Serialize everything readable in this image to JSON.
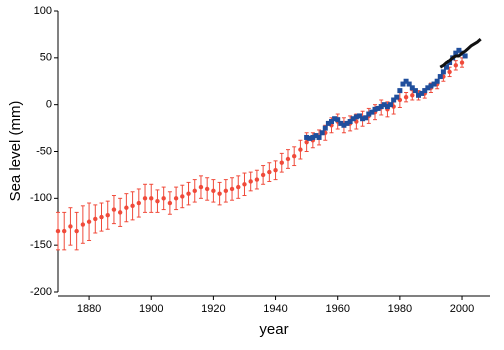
{
  "chart_data": {
    "type": "scatter",
    "x_label": "year",
    "y_label": "Sea level (mm)",
    "xlim": [
      1870,
      2009
    ],
    "ylim": [
      -200,
      100
    ],
    "xticks": [
      1880,
      1900,
      1920,
      1940,
      1960,
      1980,
      2000
    ],
    "yticks": [
      -200,
      -150,
      -100,
      -50,
      0,
      50,
      100
    ],
    "grid": false,
    "series": [
      {
        "color": "#f04a3a",
        "marker": "errorbar",
        "x": [
          1870,
          1872,
          1874,
          1876,
          1878,
          1880,
          1882,
          1884,
          1886,
          1888,
          1890,
          1892,
          1894,
          1896,
          1898,
          1900,
          1902,
          1904,
          1906,
          1908,
          1910,
          1912,
          1914,
          1916,
          1918,
          1920,
          1922,
          1924,
          1926,
          1928,
          1930,
          1932,
          1934,
          1936,
          1938,
          1940,
          1942,
          1944,
          1946,
          1948,
          1950,
          1952,
          1954,
          1956,
          1958,
          1960,
          1962,
          1964,
          1966,
          1968,
          1970,
          1972,
          1974,
          1976,
          1978,
          1980,
          1982,
          1984,
          1986,
          1988,
          1990,
          1992,
          1994,
          1996,
          1998,
          2000
        ],
        "values": [
          -135,
          -135,
          -130,
          -135,
          -128,
          -125,
          -122,
          -120,
          -118,
          -112,
          -115,
          -110,
          -108,
          -105,
          -100,
          -100,
          -103,
          -100,
          -105,
          -100,
          -98,
          -95,
          -92,
          -88,
          -90,
          -92,
          -95,
          -92,
          -90,
          -88,
          -85,
          -82,
          -80,
          -75,
          -72,
          -70,
          -62,
          -58,
          -55,
          -48,
          -40,
          -38,
          -35,
          -30,
          -22,
          -18,
          -22,
          -20,
          -18,
          -15,
          -12,
          -8,
          -3,
          -5,
          -2,
          5,
          8,
          10,
          10,
          12,
          18,
          22,
          30,
          35,
          42,
          45
        ],
        "errors": [
          20,
          20,
          20,
          20,
          20,
          20,
          15,
          15,
          15,
          15,
          15,
          15,
          15,
          15,
          15,
          15,
          12,
          12,
          12,
          12,
          12,
          12,
          12,
          12,
          12,
          12,
          12,
          12,
          12,
          12,
          12,
          10,
          10,
          10,
          10,
          10,
          10,
          10,
          10,
          10,
          10,
          8,
          8,
          8,
          8,
          8,
          8,
          8,
          8,
          8,
          8,
          8,
          8,
          8,
          8,
          8,
          5,
          5,
          5,
          5,
          5,
          5,
          5,
          5,
          5,
          5
        ]
      },
      {
        "color": "#1f4e9c",
        "marker": "square",
        "x": [
          1950,
          1951,
          1952,
          1953,
          1954,
          1955,
          1956,
          1957,
          1958,
          1959,
          1960,
          1961,
          1962,
          1963,
          1964,
          1965,
          1966,
          1967,
          1968,
          1969,
          1970,
          1971,
          1972,
          1973,
          1974,
          1975,
          1976,
          1977,
          1978,
          1979,
          1980,
          1981,
          1982,
          1983,
          1984,
          1985,
          1986,
          1987,
          1988,
          1989,
          1990,
          1991,
          1992,
          1993,
          1994,
          1995,
          1996,
          1997,
          1998,
          1999,
          2000,
          2001
        ],
        "values": [
          -35,
          -36,
          -35,
          -33,
          -35,
          -30,
          -25,
          -20,
          -18,
          -15,
          -16,
          -20,
          -22,
          -20,
          -18,
          -15,
          -13,
          -12,
          -15,
          -14,
          -10,
          -8,
          -5,
          -4,
          -2,
          0,
          -2,
          0,
          5,
          8,
          15,
          22,
          25,
          22,
          18,
          15,
          10,
          12,
          15,
          18,
          20,
          22,
          25,
          30,
          35,
          40,
          45,
          50,
          55,
          58,
          55,
          52
        ]
      },
      {
        "color": "#111111",
        "marker": "line",
        "x": [
          1993,
          1994,
          1995,
          1996,
          1997,
          1998,
          1999,
          2000,
          2001,
          2002,
          2003,
          2004,
          2005,
          2006
        ],
        "values": [
          40,
          42,
          45,
          47,
          50,
          52,
          52,
          55,
          57,
          60,
          63,
          65,
          67,
          70
        ]
      }
    ]
  }
}
